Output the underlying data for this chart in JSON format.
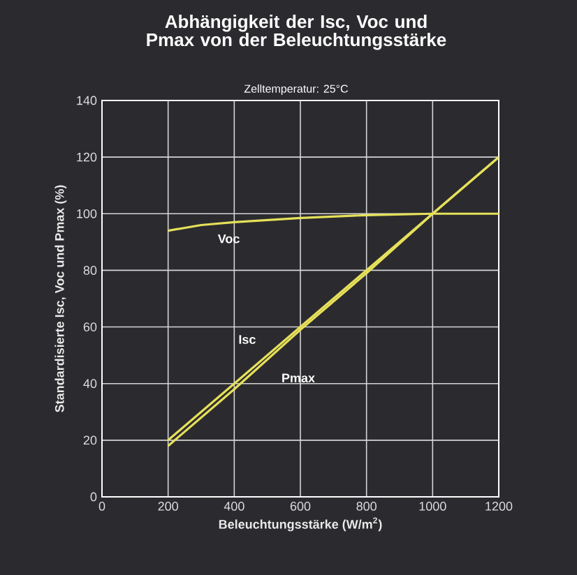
{
  "chart_data": {
    "type": "line",
    "title": "Abhängigkeit der Isc, Voc und Pmax von der Beleuchtungsstärke",
    "subtitle": "Zelltemperatur: 25°C",
    "xlabel": "Beleuchtungsstärke (W/m$^{2}$)",
    "ylabel": "Standardisierte Isc, Voc und Pmax (%)",
    "xlim": [
      0,
      1200
    ],
    "ylim": [
      0,
      140
    ],
    "xticks": [
      0,
      200,
      400,
      600,
      800,
      1000,
      1200
    ],
    "yticks": [
      0,
      20,
      40,
      60,
      80,
      100,
      120,
      140
    ],
    "grid": true,
    "series": [
      {
        "name": "Voc",
        "color": "#e6e05a",
        "x": [
          200,
          300,
          400,
          600,
          800,
          1000,
          1200
        ],
        "values": [
          94,
          96,
          97,
          98.5,
          99.5,
          100,
          100
        ]
      },
      {
        "name": "Isc",
        "color": "#e6e05a",
        "x": [
          200,
          400,
          600,
          800,
          1000,
          1200
        ],
        "values": [
          20,
          40,
          60,
          80,
          100,
          120
        ]
      },
      {
        "name": "Pmax",
        "color": "#e6e05a",
        "x": [
          200,
          400,
          600,
          800,
          1000,
          1200
        ],
        "values": [
          18,
          38,
          59,
          79,
          100,
          120
        ]
      }
    ]
  }
}
